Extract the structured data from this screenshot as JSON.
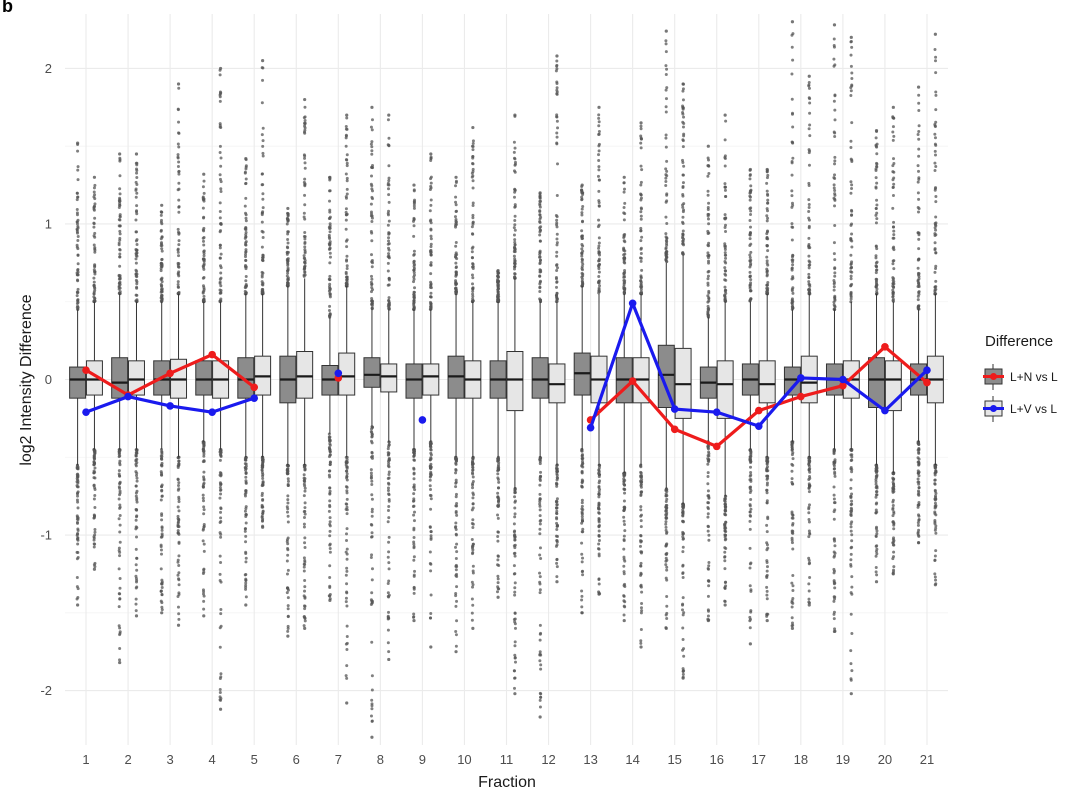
{
  "panel_label": "b",
  "chart_data": {
    "type": "boxplot",
    "xlabel": "Fraction",
    "ylabel": "log2 Intensity Difference",
    "ylim": [
      -2.35,
      2.35
    ],
    "y_ticks": [
      -2,
      -1,
      0,
      1,
      2
    ],
    "categories": [
      "1",
      "2",
      "3",
      "4",
      "5",
      "6",
      "7",
      "8",
      "9",
      "10",
      "11",
      "12",
      "13",
      "14",
      "15",
      "16",
      "17",
      "18",
      "19",
      "20",
      "21"
    ],
    "grid": true,
    "legend": {
      "title": "Difference",
      "placement": "right",
      "entries": [
        {
          "label": "L+N vs L",
          "box_color": "#8c8c8c",
          "line_color": "#ee1c1c"
        },
        {
          "label": "L+V vs L",
          "box_color": "#e6e6e6",
          "line_color": "#1a1aee"
        }
      ]
    },
    "boxes": [
      {
        "name": "L+N vs L",
        "fill": "#8c8c8c",
        "medians": [
          0,
          -0.02,
          0,
          0,
          0,
          0,
          0,
          0.03,
          0,
          0.02,
          0,
          0,
          0.04,
          0,
          0.03,
          -0.02,
          0,
          0,
          0,
          0,
          0
        ],
        "q1": [
          -0.12,
          -0.12,
          -0.1,
          -0.1,
          -0.12,
          -0.15,
          -0.1,
          -0.05,
          -0.12,
          -0.12,
          -0.12,
          -0.12,
          -0.1,
          -0.15,
          -0.18,
          -0.12,
          -0.1,
          -0.1,
          -0.1,
          -0.18,
          -0.1
        ],
        "q3": [
          0.08,
          0.14,
          0.12,
          0.12,
          0.14,
          0.15,
          0.09,
          0.14,
          0.1,
          0.15,
          0.12,
          0.14,
          0.17,
          0.14,
          0.22,
          0.08,
          0.1,
          0.08,
          0.1,
          0.14,
          0.1
        ],
        "whisker_low": [
          -0.55,
          -0.45,
          -0.45,
          -0.4,
          -0.5,
          -0.55,
          -0.35,
          -0.3,
          -0.45,
          -0.5,
          -0.5,
          -0.5,
          -0.45,
          -0.6,
          -0.7,
          -0.4,
          -0.45,
          -0.4,
          -0.45,
          -0.55,
          -0.4
        ],
        "whisker_high": [
          0.45,
          0.55,
          0.5,
          0.5,
          0.55,
          0.6,
          0.4,
          0.45,
          0.45,
          0.55,
          0.5,
          0.5,
          0.6,
          0.55,
          0.75,
          0.4,
          0.5,
          0.45,
          0.45,
          0.55,
          0.45
        ],
        "outlier_low": [
          -1.45,
          -1.82,
          -1.5,
          -1.52,
          -1.45,
          -1.65,
          -1.42,
          -2.3,
          -1.55,
          -1.75,
          -1.4,
          -2.17,
          -1.5,
          -1.55,
          -1.6,
          -1.55,
          -1.7,
          -1.6,
          -1.62,
          -1.3,
          -1.05
        ],
        "outlier_high": [
          1.52,
          1.45,
          1.12,
          1.32,
          1.42,
          1.1,
          1.3,
          1.75,
          1.25,
          1.3,
          0.7,
          1.2,
          1.25,
          1.3,
          2.24,
          1.5,
          1.35,
          2.3,
          2.28,
          1.6,
          1.88
        ]
      },
      {
        "name": "L+V vs L",
        "fill": "#e6e6e6",
        "medians": [
          0,
          0,
          0,
          0,
          0.02,
          0.02,
          0.02,
          0.02,
          0.02,
          0,
          0,
          -0.03,
          0,
          0,
          -0.03,
          -0.03,
          -0.03,
          -0.02,
          0,
          0,
          0
        ],
        "q1": [
          -0.1,
          -0.1,
          -0.12,
          -0.12,
          -0.1,
          -0.12,
          -0.1,
          -0.08,
          -0.1,
          -0.12,
          -0.2,
          -0.15,
          -0.15,
          -0.15,
          -0.25,
          -0.25,
          -0.15,
          -0.15,
          -0.12,
          -0.2,
          -0.15
        ],
        "q3": [
          0.12,
          0.12,
          0.13,
          0.12,
          0.15,
          0.18,
          0.17,
          0.1,
          0.1,
          0.12,
          0.18,
          0.1,
          0.15,
          0.14,
          0.2,
          0.12,
          0.12,
          0.15,
          0.12,
          0.12,
          0.15
        ],
        "whisker_low": [
          -0.45,
          -0.45,
          -0.5,
          -0.45,
          -0.5,
          -0.55,
          -0.5,
          -0.4,
          -0.4,
          -0.5,
          -0.7,
          -0.55,
          -0.55,
          -0.55,
          -0.8,
          -0.75,
          -0.5,
          -0.5,
          -0.45,
          -0.6,
          -0.55
        ],
        "whisker_high": [
          0.5,
          0.5,
          0.55,
          0.5,
          0.55,
          0.65,
          0.6,
          0.45,
          0.45,
          0.5,
          0.65,
          0.5,
          0.55,
          0.55,
          0.8,
          0.5,
          0.55,
          0.55,
          0.5,
          0.5,
          0.55
        ],
        "outlier_low": [
          -1.22,
          -1.52,
          -1.58,
          -2.12,
          -0.95,
          -1.6,
          -2.08,
          -1.8,
          -1.72,
          -1.6,
          -2.02,
          -1.3,
          -1.38,
          -1.72,
          -1.92,
          -1.45,
          -1.55,
          -1.45,
          -2.02,
          -1.25,
          -1.32
        ],
        "outlier_high": [
          1.3,
          1.45,
          1.9,
          2.0,
          2.05,
          1.8,
          1.7,
          1.7,
          1.45,
          1.62,
          1.7,
          2.08,
          1.75,
          1.65,
          1.9,
          1.7,
          1.35,
          1.95,
          2.2,
          1.75,
          2.22
        ]
      }
    ],
    "series": [
      {
        "name": "L+N vs L",
        "color": "#ee1c1c",
        "points": [
          [
            1,
            0.06
          ],
          [
            2,
            -0.1
          ],
          [
            3,
            0.04
          ],
          [
            4,
            0.16
          ],
          [
            5,
            -0.05
          ]
        ]
      },
      {
        "name": "L+N vs L",
        "color": "#ee1c1c",
        "points": [
          [
            7,
            0.01
          ]
        ]
      },
      {
        "name": "L+N vs L",
        "color": "#ee1c1c",
        "points": [
          [
            13,
            -0.26
          ],
          [
            14,
            -0.01
          ],
          [
            15,
            -0.32
          ],
          [
            16,
            -0.43
          ],
          [
            17,
            -0.2
          ],
          [
            18,
            -0.11
          ],
          [
            19,
            -0.04
          ],
          [
            20,
            0.21
          ],
          [
            21,
            -0.02
          ]
        ]
      },
      {
        "name": "L+V vs L",
        "color": "#1a1aee",
        "points": [
          [
            1,
            -0.21
          ],
          [
            2,
            -0.11
          ],
          [
            3,
            -0.17
          ],
          [
            4,
            -0.21
          ],
          [
            5,
            -0.12
          ]
        ]
      },
      {
        "name": "L+V vs L",
        "color": "#1a1aee",
        "points": [
          [
            7,
            0.04
          ]
        ]
      },
      {
        "name": "L+V vs L",
        "color": "#1a1aee",
        "points": [
          [
            9,
            -0.26
          ]
        ]
      },
      {
        "name": "L+V vs L",
        "color": "#1a1aee",
        "points": [
          [
            13,
            -0.31
          ],
          [
            14,
            0.49
          ],
          [
            15,
            -0.19
          ],
          [
            16,
            -0.21
          ],
          [
            17,
            -0.3
          ],
          [
            18,
            0.01
          ],
          [
            19,
            0.0
          ],
          [
            20,
            -0.2
          ],
          [
            21,
            0.06
          ]
        ]
      }
    ]
  }
}
